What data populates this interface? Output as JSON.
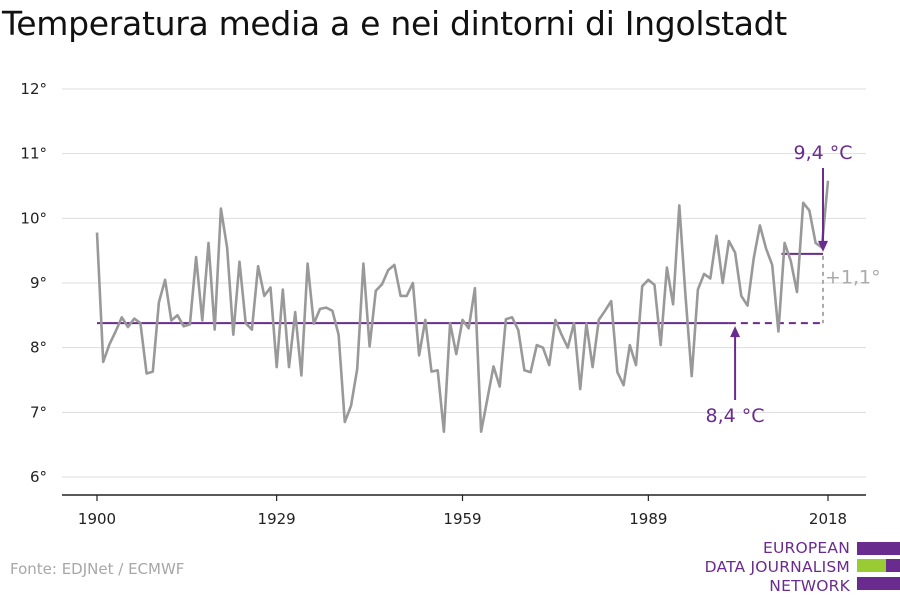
{
  "title": "Temperatura media a e nei dintorni di Ingolstadt",
  "source": "Fonte: EDJNet / ECMWF",
  "logo": {
    "line1": "EUROPEAN",
    "line2": "DATA JOURNALISM",
    "line3": "NETWORK"
  },
  "colors": {
    "series": "#999999",
    "accent": "#6a2b8e",
    "green": "#99cc33",
    "grid": "#dddddd",
    "diff": "#aaaaaa"
  },
  "chart_data": {
    "type": "line",
    "title": "Temperatura media a e nei dintorni di Ingolstadt",
    "ylim": [
      6,
      12
    ],
    "xlim": [
      1900,
      2018
    ],
    "y_ticks": [
      6,
      7,
      8,
      9,
      10,
      11,
      12
    ],
    "y_tick_labels": [
      "6°",
      "7°",
      "8°",
      "9°",
      "10°",
      "11°",
      "12°"
    ],
    "x_ticks": [
      1900,
      1929,
      1959,
      1989,
      2018
    ],
    "x_tick_labels": [
      "1900",
      "1929",
      "1959",
      "1989",
      "2018"
    ],
    "grid": true,
    "series": [
      {
        "x": [
          1900,
          1901,
          1902,
          1903,
          1904,
          1905,
          1906,
          1907,
          1908,
          1909,
          1910,
          1911,
          1912,
          1913,
          1914,
          1915,
          1916,
          1917,
          1918,
          1919,
          1920,
          1921,
          1922,
          1923,
          1924,
          1925,
          1926,
          1927,
          1928,
          1929,
          1930,
          1931,
          1932,
          1933,
          1934,
          1935,
          1936,
          1937,
          1938,
          1939,
          1940,
          1941,
          1942,
          1943,
          1944,
          1945,
          1946,
          1947,
          1948,
          1949,
          1950,
          1951,
          1952,
          1953,
          1954,
          1955,
          1956,
          1957,
          1958,
          1959,
          1960,
          1961,
          1962,
          1963,
          1964,
          1965,
          1966,
          1967,
          1968,
          1969,
          1970,
          1971,
          1972,
          1973,
          1974,
          1975,
          1976,
          1977,
          1978,
          1979,
          1980,
          1981,
          1982,
          1983,
          1984,
          1985,
          1986,
          1987,
          1988,
          1989,
          1990,
          1991,
          1992,
          1993,
          1994,
          1995,
          1996,
          1997,
          1998,
          1999,
          2000,
          2001,
          2002,
          2003,
          2004,
          2005,
          2006,
          2007,
          2008,
          2009,
          2010,
          2011,
          2012,
          2013,
          2014,
          2015,
          2016,
          2017,
          2018
        ],
        "values": [
          9.78,
          7.78,
          8.05,
          8.25,
          8.47,
          8.32,
          8.45,
          8.38,
          7.6,
          7.63,
          8.7,
          9.05,
          8.42,
          8.5,
          8.33,
          8.36,
          9.4,
          8.42,
          9.62,
          8.28,
          10.15,
          9.55,
          8.2,
          9.33,
          8.38,
          8.28,
          9.26,
          8.8,
          8.93,
          7.7,
          8.9,
          7.7,
          8.55,
          7.57,
          9.3,
          8.37,
          8.6,
          8.62,
          8.57,
          8.2,
          6.85,
          7.1,
          7.67,
          9.3,
          8.02,
          8.88,
          8.98,
          9.2,
          9.28,
          8.8,
          8.8,
          9.0,
          7.88,
          8.43,
          7.63,
          7.65,
          6.7,
          8.38,
          7.9,
          8.43,
          8.3,
          8.92,
          6.7,
          7.2,
          7.71,
          7.4,
          8.44,
          8.47,
          8.27,
          7.65,
          7.62,
          8.04,
          8.0,
          7.73,
          8.43,
          8.2,
          8.0,
          8.38,
          7.36,
          8.37,
          7.7,
          8.43,
          8.57,
          8.72,
          7.62,
          7.42,
          8.04,
          7.73,
          8.95,
          9.05,
          8.97,
          8.04,
          9.24,
          8.67,
          10.2,
          8.8,
          7.56,
          8.9,
          9.14,
          9.07,
          9.73,
          9.0,
          9.65,
          9.47,
          8.8,
          8.65,
          9.38,
          9.89,
          9.53,
          9.28,
          8.25,
          9.62,
          9.34,
          8.86,
          10.24,
          10.12,
          9.62,
          9.55,
          10.58
        ]
      }
    ],
    "reference_lines": [
      {
        "label": "8,4 °C",
        "value": 8.38,
        "from": 1900,
        "to": 2018
      },
      {
        "label": "9,4 °C",
        "value": 9.45,
        "from": 2010,
        "to": 2018
      }
    ],
    "difference_label": "+1,1°"
  }
}
